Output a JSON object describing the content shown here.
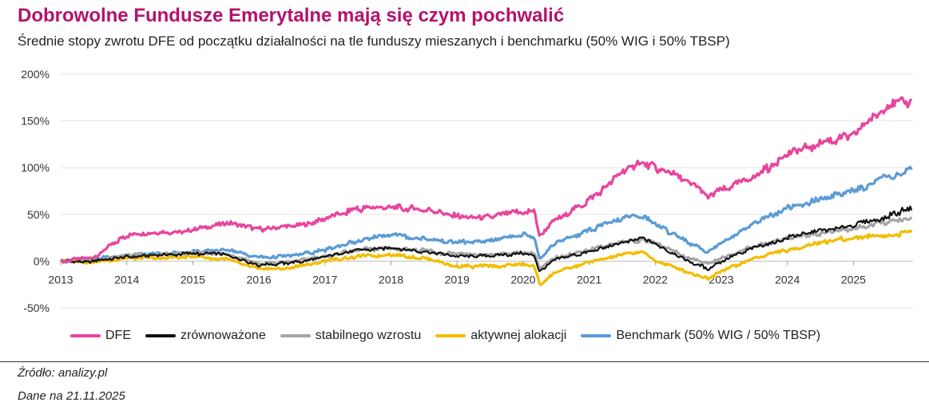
{
  "title": "Dobrowolne Fundusze Emerytalne mają się czym pochwalić",
  "subtitle": "Średnie stopy zwrotu DFE od początku działalności na tle funduszy mieszanych i benchmarku (50% WIG i 50% TBSP)",
  "footer": {
    "source": "Źródło: analizy.pl",
    "date": "Dane na 21.11.2025"
  },
  "chart_data": {
    "type": "line",
    "title": "Dobrowolne Fundusze Emerytalne mają się czym pochwalić",
    "subtitle": "Średnie stopy zwrotu DFE od początku działalności na tle funduszy mieszanych i benchmarku (50% WIG i 50% TBSP)",
    "xlabel": "",
    "ylabel": "",
    "xlim": [
      2013,
      2025.9
    ],
    "ylim": [
      -50,
      200
    ],
    "y_ticks": [
      200,
      150,
      100,
      50,
      0,
      -50
    ],
    "y_tick_labels": [
      "200%",
      "150%",
      "100%",
      "50%",
      "0%",
      "-50%"
    ],
    "x_ticks": [
      2013,
      2014,
      2015,
      2016,
      2017,
      2018,
      2019,
      2020,
      2021,
      2022,
      2023,
      2024,
      2025
    ],
    "x_tick_labels": [
      "2013",
      "2014",
      "2015",
      "2016",
      "2017",
      "2018",
      "2019",
      "2020",
      "2021",
      "2022",
      "2023",
      "2024",
      "2025"
    ],
    "grid": "horizontal",
    "legend_position": "bottom",
    "x": [
      2013,
      2013.5,
      2014,
      2014.5,
      2015,
      2015.5,
      2016,
      2016.5,
      2017,
      2017.5,
      2018,
      2018.5,
      2019,
      2019.5,
      2020,
      2020.17,
      2020.25,
      2020.5,
      2021,
      2021.5,
      2021.8,
      2022,
      2022.5,
      2022.8,
      2023,
      2023.5,
      2024,
      2024.5,
      2025,
      2025.5,
      2025.88
    ],
    "series": [
      {
        "name": "DFE",
        "color": "#e8449e",
        "values": [
          0,
          4,
          28,
          30,
          33,
          42,
          34,
          38,
          45,
          56,
          58,
          55,
          48,
          48,
          53,
          52,
          25,
          45,
          65,
          95,
          107,
          100,
          85,
          70,
          75,
          90,
          115,
          125,
          135,
          165,
          172
        ]
      },
      {
        "name": "zrównoważone",
        "color": "#111111",
        "values": [
          0,
          0,
          5,
          6,
          8,
          7,
          -4,
          -2,
          4,
          12,
          14,
          10,
          6,
          6,
          8,
          7,
          -12,
          2,
          10,
          20,
          24,
          18,
          0,
          -8,
          0,
          14,
          25,
          33,
          38,
          48,
          57
        ]
      },
      {
        "name": "stabilnego wzrostu",
        "color": "#a6a6a6",
        "values": [
          0,
          1,
          6,
          7,
          9,
          8,
          -3,
          -1,
          5,
          12,
          14,
          11,
          7,
          7,
          9,
          8,
          -8,
          4,
          12,
          20,
          23,
          19,
          4,
          -3,
          3,
          16,
          25,
          30,
          35,
          42,
          45
        ]
      },
      {
        "name": "aktywnej alokacji",
        "color": "#f2bd00",
        "values": [
          0,
          -1,
          3,
          3,
          5,
          2,
          -9,
          -7,
          0,
          5,
          7,
          3,
          -6,
          -5,
          -4,
          -5,
          -25,
          -12,
          0,
          7,
          10,
          0,
          -12,
          -18,
          -10,
          3,
          12,
          20,
          25,
          28,
          31
        ]
      },
      {
        "name": "Benchmark (50% WIG / 50% TBSP)",
        "color": "#5b9bd5",
        "values": [
          0,
          2,
          6,
          8,
          10,
          12,
          4,
          5,
          12,
          22,
          28,
          24,
          20,
          22,
          28,
          27,
          3,
          20,
          33,
          45,
          48,
          40,
          20,
          10,
          20,
          40,
          58,
          65,
          75,
          90,
          97
        ]
      }
    ]
  }
}
